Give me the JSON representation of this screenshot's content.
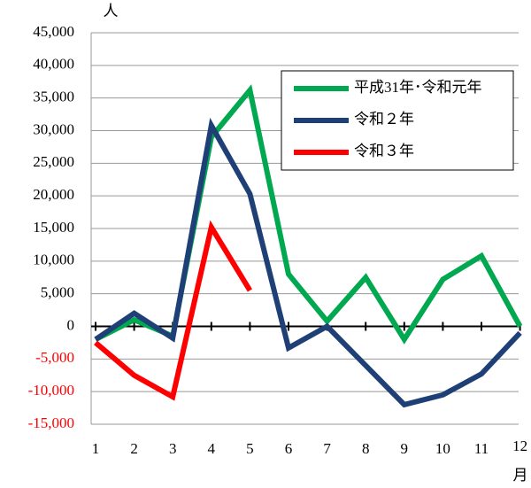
{
  "chart_data": {
    "type": "line",
    "y_axis_label": "人",
    "x_axis_label": "月",
    "categories": [
      "1",
      "2",
      "3",
      "4",
      "5",
      "6",
      "7",
      "8",
      "9",
      "10",
      "11",
      "12"
    ],
    "series": [
      {
        "name": "平成31年･令和元年",
        "color": "#00a84f",
        "values": [
          -2000,
          1000,
          -1500,
          29000,
          36200,
          8000,
          800,
          7500,
          -2000,
          7200,
          10800,
          0
        ]
      },
      {
        "name": "令和２年",
        "color": "#1f3f77",
        "values": [
          -2000,
          2000,
          -1800,
          30800,
          20300,
          -3300,
          0,
          -6000,
          -12000,
          -10500,
          -7300,
          -1000
        ]
      },
      {
        "name": "令和３年",
        "color": "#ff0000",
        "values": [
          -2500,
          -7500,
          -10800,
          15200,
          5500,
          null,
          null,
          null,
          null,
          null,
          null,
          null
        ]
      }
    ],
    "ylim": [
      -15000,
      45000
    ],
    "yticks": [
      {
        "value": 45000,
        "label": "45,000"
      },
      {
        "value": 40000,
        "label": "40,000"
      },
      {
        "value": 35000,
        "label": "35,000"
      },
      {
        "value": 30000,
        "label": "30,000"
      },
      {
        "value": 25000,
        "label": "25,000"
      },
      {
        "value": 20000,
        "label": "20,000"
      },
      {
        "value": 15000,
        "label": "15,000"
      },
      {
        "value": 10000,
        "label": "10,000"
      },
      {
        "value": 5000,
        "label": "5,000"
      },
      0,
      {
        "value": -5000,
        "label": "-5,000"
      },
      {
        "value": -10000,
        "label": "-10,000"
      },
      {
        "value": -15000,
        "label": "-15,000"
      }
    ],
    "grid": true,
    "legend": "top-right"
  }
}
